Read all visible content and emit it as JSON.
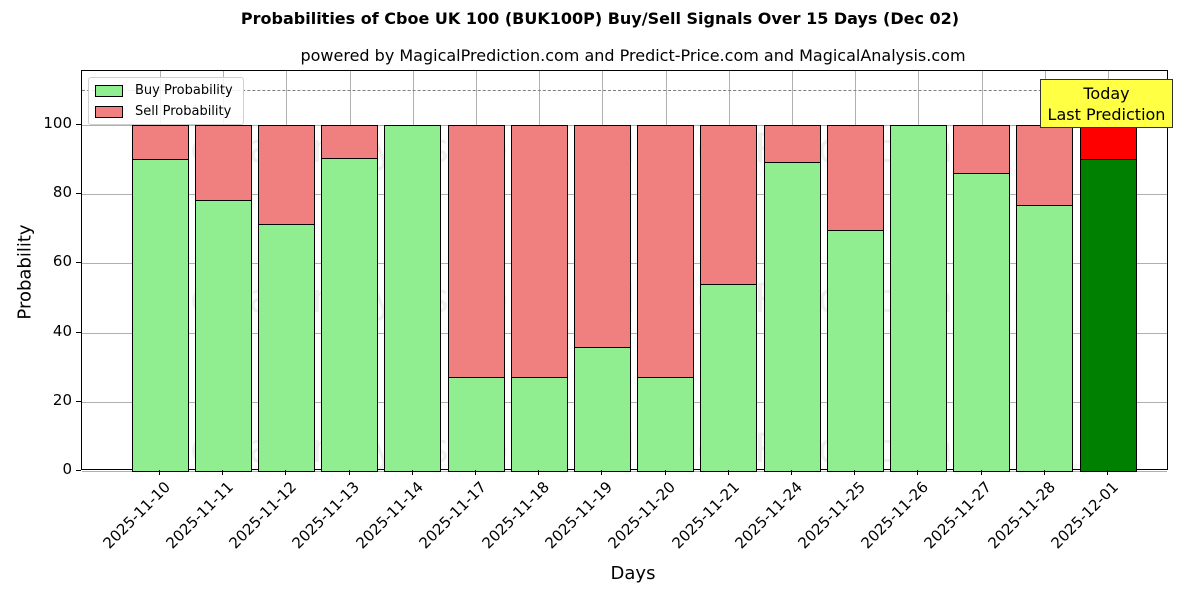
{
  "header": {
    "title": "Probabilities of Cboe UK 100 (BUK100P) Buy/Sell Signals Over 15 Days (Dec 02)",
    "subtitle": "powered by MagicalPrediction.com and Predict-Price.com and MagicalAnalysis.com"
  },
  "legend": {
    "buy_label": "Buy Probability",
    "sell_label": "Sell Probability"
  },
  "annotation": {
    "line1": "Today",
    "line2": "Last Prediction"
  },
  "axes": {
    "xlabel": "Days",
    "ylabel": "Probability",
    "yticks": [
      "0",
      "20",
      "40",
      "60",
      "80",
      "100"
    ]
  },
  "watermarks": [
    "MagicalAnalysis.com",
    "MagicalPrediction.com"
  ],
  "colors": {
    "buy": "#90ee90",
    "sell": "#f08080",
    "buy_today": "#008000",
    "sell_today": "#ff0000",
    "annotation_bg": "#ffff44"
  },
  "chart_data": {
    "type": "bar",
    "stacked": true,
    "title": "Probabilities of Cboe UK 100 (BUK100P) Buy/Sell Signals Over 15 Days (Dec 02)",
    "subtitle": "powered by MagicalPrediction.com and Predict-Price.com and MagicalAnalysis.com",
    "xlabel": "Days",
    "ylabel": "Probability",
    "ylim": [
      0,
      115
    ],
    "yticks": [
      0,
      20,
      40,
      60,
      80,
      100
    ],
    "grid": true,
    "legend_position": "upper left",
    "reference_line": {
      "y": 110,
      "style": "dashed",
      "color": "#7f7f7f"
    },
    "categories": [
      "2025-11-10",
      "2025-11-11",
      "2025-11-12",
      "2025-11-13",
      "2025-11-14",
      "2025-11-17",
      "2025-11-18",
      "2025-11-19",
      "2025-11-20",
      "2025-11-21",
      "2025-11-24",
      "2025-11-25",
      "2025-11-26",
      "2025-11-27",
      "2025-11-28",
      "2025-12-01"
    ],
    "series": [
      {
        "name": "Buy Probability",
        "values": [
          90.2,
          78.3,
          71.4,
          90.5,
          100,
          27.2,
          27.2,
          35.8,
          27.2,
          54.0,
          89.3,
          69.6,
          100,
          86.1,
          76.9,
          90.2
        ]
      },
      {
        "name": "Sell Probability",
        "values": [
          9.8,
          21.7,
          28.6,
          9.5,
          0,
          72.8,
          72.8,
          64.2,
          72.8,
          46.0,
          10.7,
          30.4,
          0,
          13.9,
          23.1,
          9.8
        ]
      }
    ],
    "annotations": [
      {
        "text": "Today\nLast Prediction",
        "x": "2025-12-01"
      }
    ]
  }
}
